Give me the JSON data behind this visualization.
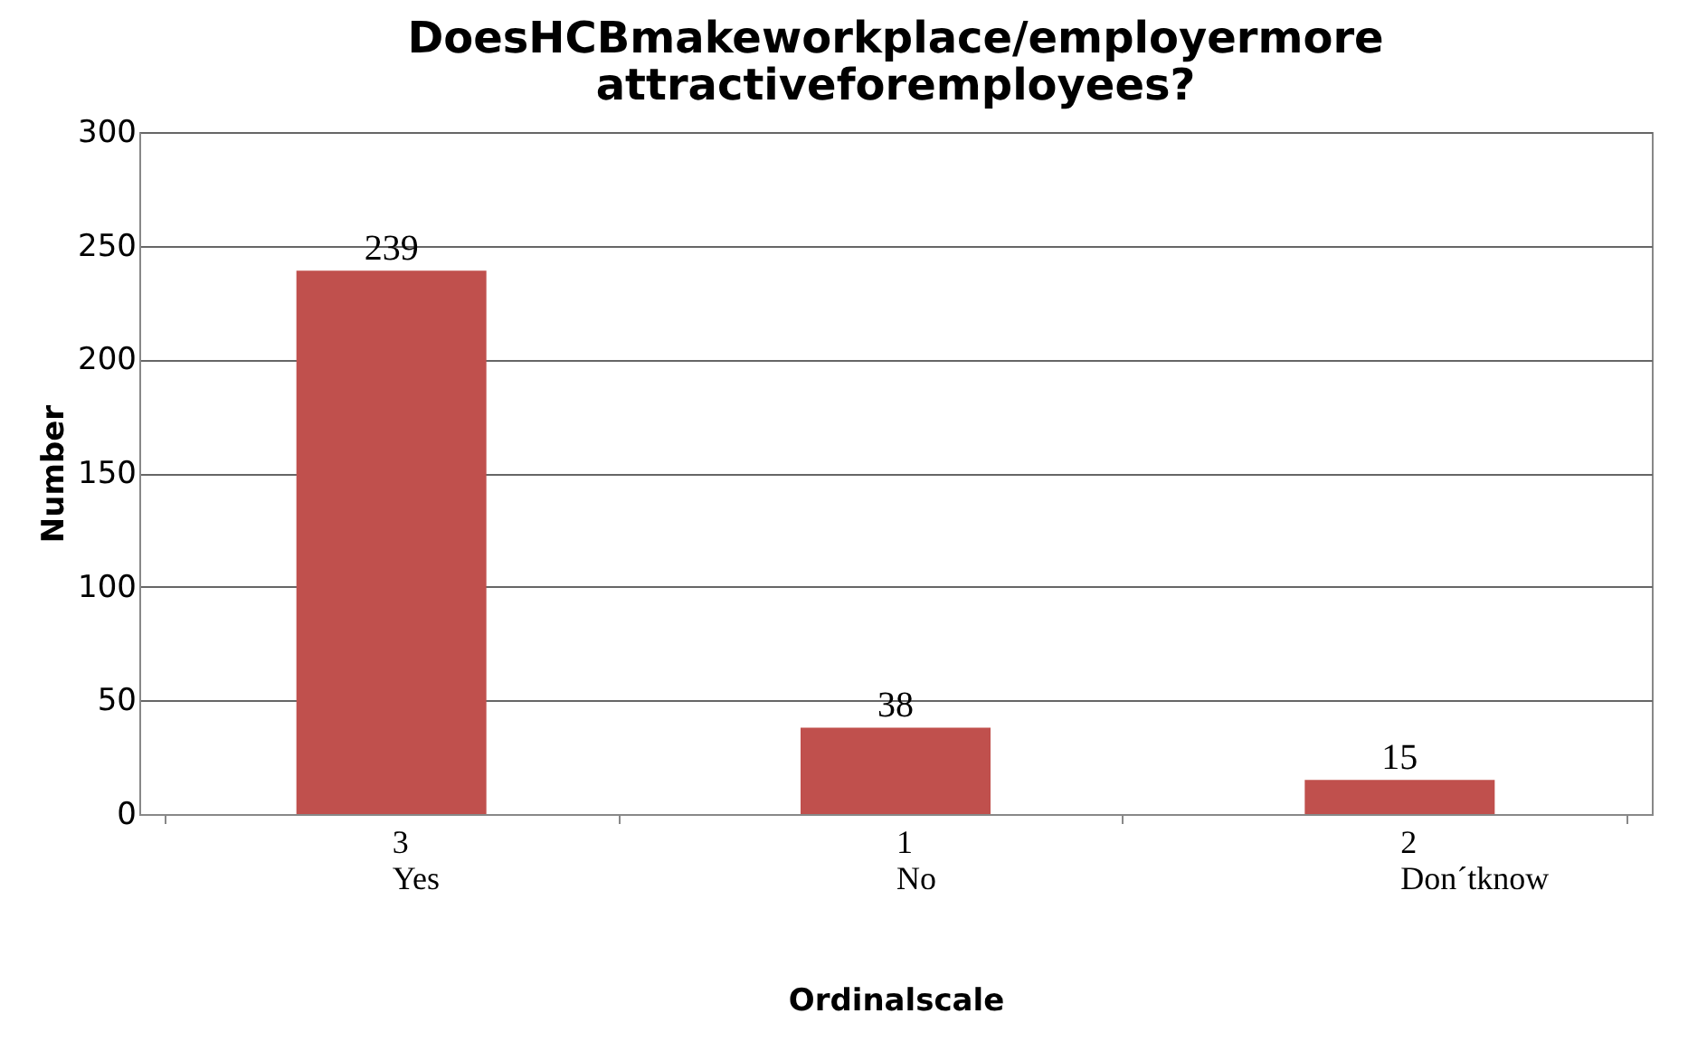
{
  "chart_data": {
    "type": "bar",
    "title": "DoesHCBmakeworkplace/employermore attractiveforemployees?",
    "categories": [
      "3\nYes",
      "1\nNo",
      "2\nDon´tknow"
    ],
    "values": [
      239,
      38,
      15
    ],
    "color": "#c0504d",
    "xlabel": "Ordinalscale",
    "ylabel": "Number",
    "ylim": [
      0,
      300
    ],
    "yticks": [
      0,
      50,
      100,
      150,
      200,
      250,
      300
    ],
    "grid": "y",
    "data_labels": true
  }
}
